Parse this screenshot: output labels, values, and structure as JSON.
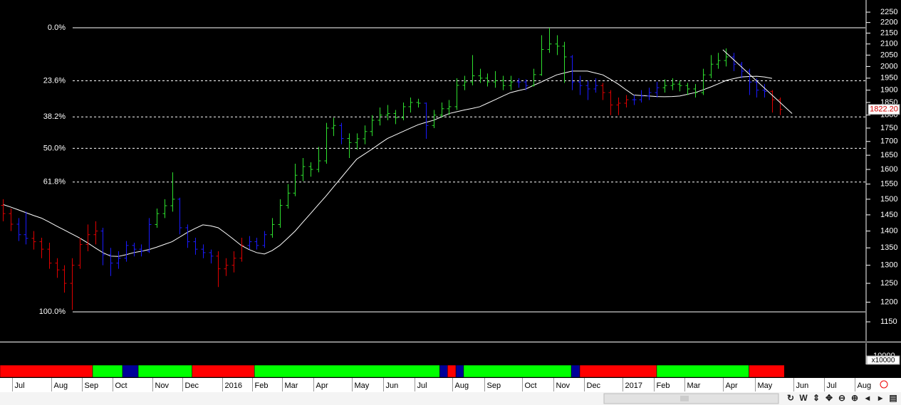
{
  "chart_data": {
    "type": "ohlc",
    "log_y": true,
    "xlim": [
      -0.37,
      112.13
    ],
    "ylim": [
      1105,
      2310
    ],
    "yticks": [
      1150,
      1200,
      1250,
      1300,
      1350,
      1400,
      1450,
      1500,
      1550,
      1600,
      1650,
      1700,
      1750,
      1800,
      1850,
      1900,
      1950,
      2000,
      2050,
      2100,
      2150,
      2200,
      2250
    ],
    "xticks": [
      {
        "value": 1.2,
        "label": "Jul"
      },
      {
        "value": 6.3,
        "label": "Aug"
      },
      {
        "value": 10.3,
        "label": "Sep"
      },
      {
        "value": 14.3,
        "label": "Oct"
      },
      {
        "value": 19.4,
        "label": "Nov"
      },
      {
        "value": 23.3,
        "label": "Dec"
      },
      {
        "value": 28.5,
        "label": "2016"
      },
      {
        "value": 32.4,
        "label": "Feb"
      },
      {
        "value": 36.3,
        "label": "Mar"
      },
      {
        "value": 40.4,
        "label": "Apr"
      },
      {
        "value": 45.4,
        "label": "May"
      },
      {
        "value": 49.4,
        "label": "Jun"
      },
      {
        "value": 53.5,
        "label": "Jul"
      },
      {
        "value": 58.4,
        "label": "Aug"
      },
      {
        "value": 62.6,
        "label": "Sep"
      },
      {
        "value": 67.5,
        "label": "Oct"
      },
      {
        "value": 71.6,
        "label": "Nov"
      },
      {
        "value": 75.6,
        "label": "Dec"
      },
      {
        "value": 80.6,
        "label": "2017"
      },
      {
        "value": 84.6,
        "label": "Feb"
      },
      {
        "value": 88.6,
        "label": "Mar"
      },
      {
        "value": 93.6,
        "label": "Apr"
      },
      {
        "value": 97.8,
        "label": "May"
      },
      {
        "value": 102.8,
        "label": "Jun"
      },
      {
        "value": 106.8,
        "label": "Jul"
      },
      {
        "value": 110.7,
        "label": "Aug"
      }
    ],
    "open": [
      1480,
      1454,
      1421,
      1389,
      1378,
      1368,
      1346,
      1306,
      1287,
      1250,
      1300,
      1360,
      1389,
      1400,
      1330,
      1306,
      1320,
      1357,
      1346,
      1340,
      1420,
      1454,
      1479,
      1500,
      1410,
      1368,
      1346,
      1336,
      1326,
      1290,
      1300,
      1320,
      1357,
      1368,
      1357,
      1389,
      1420,
      1480,
      1520,
      1580,
      1610,
      1600,
      1630,
      1750,
      1760,
      1711,
      1696,
      1710,
      1737,
      1780,
      1800,
      1806,
      1790,
      1833,
      1850,
      1847,
      1760,
      1800,
      1825,
      1833,
      1920,
      1934,
      1960,
      1950,
      1934,
      1940,
      1919,
      1934,
      1934,
      1919,
      1965,
      2075,
      2100,
      2090,
      2042,
      1934,
      1919,
      1905,
      1919,
      1890,
      1840,
      1847,
      1861,
      1861,
      1876,
      1890,
      1910,
      1919,
      1925,
      1919,
      1905,
      1890,
      1964,
      2010,
      2026,
      2042,
      2010,
      1980,
      1934,
      1900,
      1895,
      1861
    ],
    "high": [
      1500,
      1470,
      1440,
      1460,
      1400,
      1380,
      1365,
      1320,
      1300,
      1320,
      1380,
      1420,
      1430,
      1410,
      1350,
      1340,
      1370,
      1365,
      1360,
      1440,
      1470,
      1500,
      1590,
      1505,
      1420,
      1380,
      1360,
      1345,
      1340,
      1320,
      1340,
      1380,
      1385,
      1380,
      1400,
      1440,
      1500,
      1550,
      1620,
      1640,
      1625,
      1680,
      1770,
      1790,
      1770,
      1730,
      1730,
      1760,
      1800,
      1830,
      1840,
      1820,
      1850,
      1870,
      1865,
      1850,
      1820,
      1850,
      1860,
      1950,
      1960,
      2050,
      1990,
      1970,
      1980,
      1960,
      1960,
      1950,
      1945,
      1990,
      2140,
      2175,
      2140,
      2110,
      2050,
      1960,
      1940,
      1950,
      1930,
      1900,
      1870,
      1880,
      1880,
      1900,
      1910,
      1935,
      1945,
      1950,
      1940,
      1930,
      1925,
      1990,
      2050,
      2060,
      2080,
      2060,
      2020,
      1990,
      1950,
      1925,
      1900,
      1870
    ],
    "low": [
      1430,
      1400,
      1370,
      1360,
      1345,
      1320,
      1290,
      1265,
      1225,
      1180,
      1290,
      1340,
      1360,
      1300,
      1270,
      1290,
      1310,
      1325,
      1325,
      1335,
      1410,
      1440,
      1460,
      1390,
      1350,
      1330,
      1320,
      1305,
      1240,
      1270,
      1280,
      1310,
      1345,
      1345,
      1350,
      1380,
      1410,
      1470,
      1510,
      1560,
      1575,
      1590,
      1620,
      1720,
      1690,
      1640,
      1670,
      1690,
      1720,
      1760,
      1780,
      1765,
      1780,
      1810,
      1830,
      1710,
      1750,
      1790,
      1800,
      1820,
      1900,
      1920,
      1930,
      1915,
      1910,
      1900,
      1900,
      1910,
      1900,
      1915,
      1960,
      2060,
      2050,
      1930,
      1900,
      1880,
      1860,
      1890,
      1860,
      1800,
      1800,
      1830,
      1840,
      1850,
      1860,
      1870,
      1890,
      1900,
      1895,
      1880,
      1870,
      1880,
      1950,
      1990,
      2000,
      1980,
      1950,
      1880,
      1870,
      1870,
      1810,
      1800
    ],
    "close": [
      1454,
      1421,
      1389,
      1378,
      1368,
      1346,
      1306,
      1287,
      1250,
      1300,
      1360,
      1389,
      1400,
      1330,
      1306,
      1320,
      1357,
      1346,
      1340,
      1420,
      1454,
      1479,
      1500,
      1410,
      1368,
      1346,
      1336,
      1326,
      1290,
      1300,
      1320,
      1357,
      1368,
      1357,
      1389,
      1420,
      1480,
      1520,
      1580,
      1610,
      1600,
      1630,
      1750,
      1760,
      1711,
      1696,
      1710,
      1737,
      1780,
      1800,
      1806,
      1790,
      1833,
      1850,
      1847,
      1760,
      1800,
      1825,
      1833,
      1920,
      1934,
      1960,
      1950,
      1934,
      1940,
      1919,
      1934,
      1934,
      1919,
      1965,
      2075,
      2100,
      2090,
      2042,
      1934,
      1919,
      1905,
      1919,
      1890,
      1840,
      1847,
      1861,
      1861,
      1876,
      1890,
      1910,
      1919,
      1925,
      1919,
      1905,
      1890,
      1964,
      2010,
      2026,
      2042,
      2010,
      1980,
      1934,
      1900,
      1895,
      1861,
      1822.2
    ],
    "trend": [
      "r",
      "r",
      "b",
      "b",
      "r",
      "r",
      "r",
      "r",
      "r",
      "r",
      "r",
      "r",
      "r",
      "b",
      "b",
      "b",
      "b",
      "b",
      "b",
      "b",
      "g",
      "g",
      "g",
      "b",
      "b",
      "b",
      "b",
      "b",
      "r",
      "r",
      "r",
      "r",
      "b",
      "b",
      "b",
      "g",
      "g",
      "g",
      "g",
      "g",
      "g",
      "g",
      "g",
      "g",
      "b",
      "g",
      "g",
      "g",
      "g",
      "g",
      "g",
      "g",
      "g",
      "g",
      "g",
      "b",
      "g",
      "g",
      "g",
      "g",
      "g",
      "g",
      "g",
      "g",
      "g",
      "g",
      "g",
      "b",
      "b",
      "g",
      "g",
      "g",
      "g",
      "g",
      "b",
      "b",
      "b",
      "b",
      "r",
      "r",
      "r",
      "r",
      "b",
      "b",
      "b",
      "b",
      "g",
      "g",
      "g",
      "g",
      "g",
      "g",
      "g",
      "g",
      "g",
      "b",
      "b",
      "b",
      "b",
      "b",
      "r",
      "r"
    ],
    "trend_colors": {
      "r": "#e00000",
      "b": "#1a1aff",
      "g": "#2ee02e"
    },
    "ma": {
      "color": "#ffffff",
      "values": [
        1483,
        1475,
        1466,
        1457,
        1448,
        1440,
        1428,
        1415,
        1403,
        1391,
        1379,
        1365,
        1350,
        1336,
        1326,
        1325,
        1330,
        1336,
        1340,
        1345,
        1352,
        1360,
        1368,
        1382,
        1396,
        1408,
        1419,
        1416,
        1410,
        1393,
        1375,
        1357,
        1345,
        1336,
        1332,
        1342,
        1357,
        1378,
        1400,
        1427,
        1454,
        1482,
        1510,
        1541,
        1572,
        1604,
        1636,
        1654,
        1672,
        1692,
        1711,
        1724,
        1737,
        1750,
        1763,
        1772,
        1780,
        1793,
        1806,
        1813,
        1820,
        1826,
        1833,
        1847,
        1861,
        1876,
        1890,
        1898,
        1905,
        1920,
        1934,
        1949,
        1964,
        1972,
        1980,
        1980,
        1980,
        1972,
        1964,
        1945,
        1925,
        1902,
        1880,
        1878,
        1876,
        1874,
        1873,
        1874,
        1876,
        1883,
        1890,
        1901,
        1913,
        1926,
        1940,
        1948,
        1955,
        1957,
        1958,
        1955,
        1949,
        null
      ]
    },
    "fib_color": "#ffffff",
    "fib_levels": [
      {
        "level": 0.0,
        "label": "0.0%",
        "price": 2175,
        "line": "solid"
      },
      {
        "level": 23.6,
        "label": "23.6%",
        "price": 1939,
        "line": "dashed"
      },
      {
        "level": 38.2,
        "label": "38.2%",
        "price": 1793,
        "line": "dashed"
      },
      {
        "level": 50.0,
        "label": "50.0%",
        "price": 1675,
        "line": "dashed"
      },
      {
        "level": 61.8,
        "label": "61.8%",
        "price": 1557,
        "line": "dashed"
      },
      {
        "level": 100.0,
        "label": "100.0%",
        "price": 1175,
        "line": "solid"
      }
    ],
    "trendline": {
      "x": [
        93.6,
        102.6
      ],
      "y": [
        2074,
        1806
      ],
      "color": "#ffffff"
    },
    "last_price": {
      "value": 1822.2,
      "label": "1822.20"
    },
    "trend_strip": [
      {
        "from": -0.37,
        "to": 11.67,
        "color": "#ff0000"
      },
      {
        "from": 11.67,
        "to": 15.56,
        "color": "#00ff00"
      },
      {
        "from": 15.56,
        "to": 17.6,
        "color": "#000099"
      },
      {
        "from": 17.6,
        "to": 24.6,
        "color": "#00ff00"
      },
      {
        "from": 24.6,
        "to": 32.7,
        "color": "#ff0000"
      },
      {
        "from": 32.7,
        "to": 56.8,
        "color": "#00ff00"
      },
      {
        "from": 56.8,
        "to": 57.8,
        "color": "#000099"
      },
      {
        "from": 57.8,
        "to": 58.9,
        "color": "#ff0000"
      },
      {
        "from": 58.9,
        "to": 59.9,
        "color": "#000099"
      },
      {
        "from": 59.9,
        "to": 73.9,
        "color": "#00ff00"
      },
      {
        "from": 73.9,
        "to": 75.0,
        "color": "#000099"
      },
      {
        "from": 75.0,
        "to": 85.0,
        "color": "#ff0000"
      },
      {
        "from": 85.0,
        "to": 97.0,
        "color": "#00ff00"
      },
      {
        "from": 97.0,
        "to": 101.6,
        "color": "#ff0000"
      }
    ],
    "volume_ticks": [
      10000
    ],
    "volume_unit": "x10000",
    "toolbar": [
      "↻",
      "W",
      "⇕",
      "✥",
      "⊖",
      "⊕",
      "◂",
      "▸",
      "▤"
    ]
  }
}
